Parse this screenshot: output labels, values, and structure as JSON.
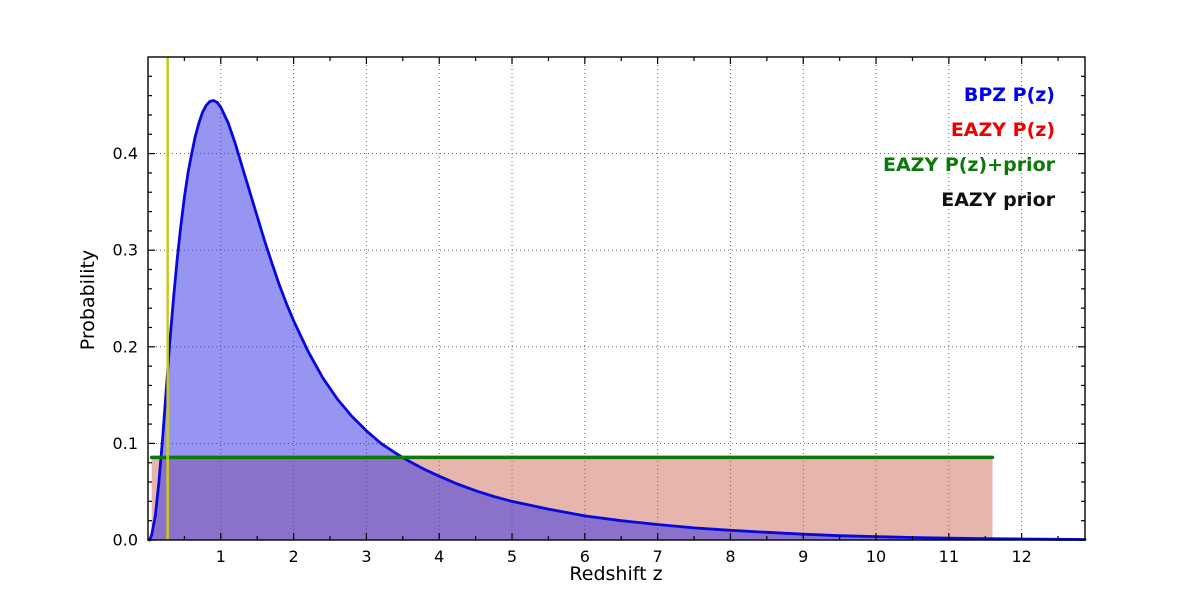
{
  "figure": {
    "background": "#ffffff",
    "frame_color": "#000000",
    "grid_color": "#555555"
  },
  "legend": {
    "position": "top-right",
    "entries": [
      {
        "label": "BPZ P(z)",
        "color": "#0000ee"
      },
      {
        "label": "EAZY P(z)",
        "color": "#ee0000"
      },
      {
        "label": "EAZY P(z)+prior",
        "color": "#0b7a0b"
      },
      {
        "label": "EAZY prior",
        "color": "#111111"
      }
    ]
  },
  "chart_data": {
    "type": "line",
    "title": "",
    "xlabel": "Redshift z",
    "ylabel": "Probability",
    "xlim": [
      0,
      12.87
    ],
    "ylim": [
      0,
      0.5
    ],
    "xticks": [
      1,
      2,
      3,
      4,
      5,
      6,
      7,
      8,
      9,
      10,
      11,
      12
    ],
    "xtick_labels": [
      "1",
      "2",
      "3",
      "4",
      "5",
      "6",
      "7",
      "8",
      "9",
      "10",
      "11",
      "12"
    ],
    "yticks": [
      0.0,
      0.1,
      0.2,
      0.3,
      0.4
    ],
    "ytick_labels": [
      "0.0",
      "0.1",
      "0.2",
      "0.3",
      "0.4"
    ],
    "x_minor_step": 0.5,
    "y_minor_step": 0.02,
    "grid": true,
    "legend_position": "upper right",
    "series": [
      {
        "name": "EAZY P(z)",
        "shape": "flat-box",
        "color": "none",
        "fill": "rgba(196,78,60,0.42)",
        "linewidth": 0,
        "fill_to_zero": true,
        "x": [
          0.05,
          11.6
        ],
        "y": [
          0.0855,
          0.0855
        ]
      },
      {
        "name": "BPZ P(z)",
        "shape": "curve",
        "color": "#0808dd",
        "fill": "rgba(45,45,230,0.50)",
        "linewidth": 2.8,
        "fill_to_zero": true,
        "x": [
          0.02,
          0.05,
          0.1,
          0.15,
          0.2,
          0.25,
          0.3,
          0.35,
          0.4,
          0.45,
          0.5,
          0.55,
          0.6,
          0.65,
          0.7,
          0.75,
          0.8,
          0.85,
          0.9,
          0.95,
          1.0,
          1.1,
          1.2,
          1.3,
          1.4,
          1.5,
          1.6,
          1.7,
          1.8,
          1.9,
          2.0,
          2.2,
          2.4,
          2.6,
          2.8,
          3.0,
          3.2,
          3.4,
          3.6,
          3.8,
          4.0,
          4.25,
          4.5,
          4.75,
          5.0,
          5.5,
          6.0,
          6.5,
          7.0,
          7.5,
          8.0,
          8.5,
          9.0,
          9.5,
          10.0,
          10.5,
          11.0,
          11.5,
          12.0,
          12.5,
          12.87
        ],
        "y": [
          0.0,
          0.005,
          0.025,
          0.06,
          0.105,
          0.155,
          0.205,
          0.25,
          0.29,
          0.325,
          0.355,
          0.38,
          0.4,
          0.418,
          0.432,
          0.443,
          0.45,
          0.454,
          0.455,
          0.453,
          0.448,
          0.432,
          0.41,
          0.385,
          0.36,
          0.335,
          0.31,
          0.287,
          0.265,
          0.245,
          0.227,
          0.195,
          0.168,
          0.146,
          0.128,
          0.113,
          0.1,
          0.09,
          0.081,
          0.073,
          0.066,
          0.058,
          0.051,
          0.045,
          0.04,
          0.032,
          0.025,
          0.02,
          0.016,
          0.0125,
          0.01,
          0.008,
          0.006,
          0.0045,
          0.0035,
          0.0026,
          0.0019,
          0.0014,
          0.001,
          0.0007,
          0.0005
        ]
      },
      {
        "name": "EAZY prior",
        "shape": "flat-line",
        "color": "#111111",
        "fill": null,
        "linewidth": 1.5,
        "fill_to_zero": false,
        "x": [
          0.05,
          11.6
        ],
        "y": [
          0.0855,
          0.0855
        ]
      },
      {
        "name": "EAZY P(z)+prior",
        "shape": "flat-line",
        "color": "#0b7a0b",
        "fill": null,
        "linewidth": 3.5,
        "fill_to_zero": false,
        "x": [
          0.05,
          11.6
        ],
        "y": [
          0.0855,
          0.0855
        ]
      }
    ],
    "vline": {
      "x": 0.27,
      "color": "#c9c920",
      "linewidth": 2.5
    }
  }
}
